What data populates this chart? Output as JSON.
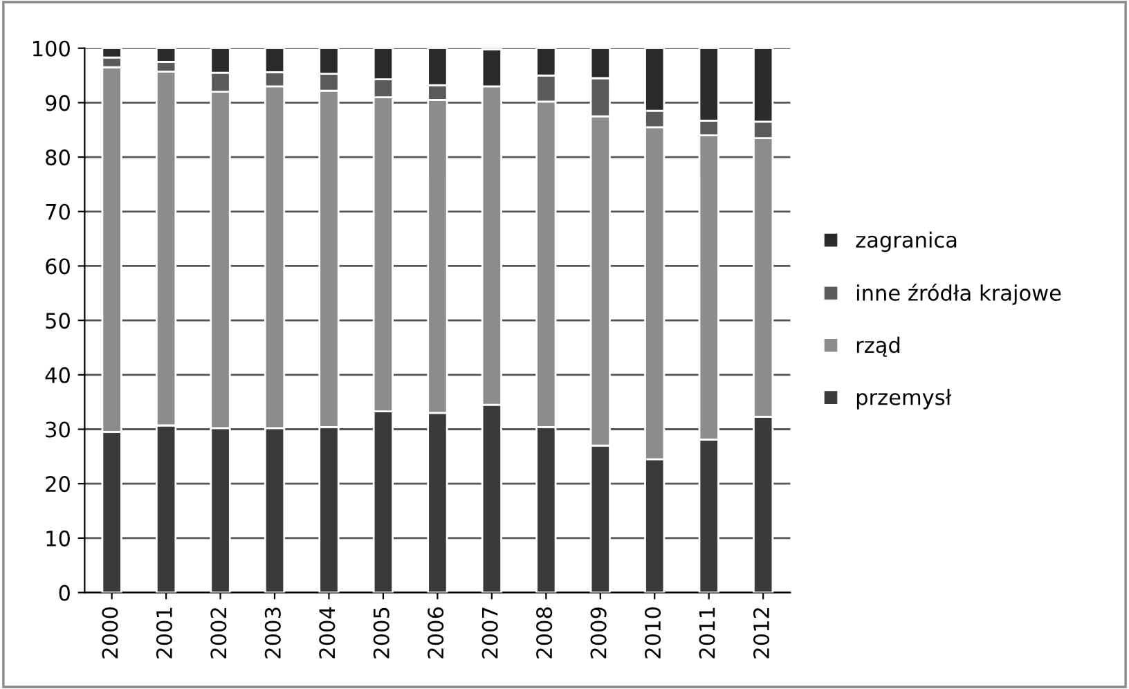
{
  "chart_data": {
    "type": "bar",
    "stacked": true,
    "categories": [
      "2000",
      "2001",
      "2002",
      "2003",
      "2004",
      "2005",
      "2006",
      "2007",
      "2008",
      "2009",
      "2010",
      "2011",
      "2012"
    ],
    "series": [
      {
        "name": "przemysł",
        "color": "#3a3a3a",
        "values": [
          29.5,
          30.7,
          30.2,
          30.2,
          30.4,
          33.3,
          33,
          34.5,
          30.4,
          27,
          24.5,
          28.1,
          32.3
        ]
      },
      {
        "name": "rząd",
        "color": "#8c8c8c",
        "values": [
          67,
          65,
          61.8,
          62.8,
          61.8,
          57.7,
          57.5,
          58.5,
          59.8,
          60.5,
          61,
          55.9,
          51.2
        ]
      },
      {
        "name": "inne źródła krajowe",
        "color": "#5a5a5a",
        "values": [
          1.8,
          1.8,
          3.5,
          2.6,
          3.1,
          3.3,
          2.7,
          null,
          4.8,
          7,
          3,
          2.7,
          3
        ]
      },
      {
        "name": "zagranica",
        "color": "#2a2a2a",
        "values": [
          1.7,
          2.5,
          4.5,
          4.4,
          4.7,
          5.7,
          6.8,
          6.8,
          5,
          5.5,
          11.5,
          13.3,
          13.5
        ]
      }
    ],
    "ylim": [
      0,
      100
    ],
    "yticks": [
      0,
      10,
      20,
      30,
      40,
      50,
      60,
      70,
      80,
      90,
      100
    ],
    "grid": "y",
    "legend": "right"
  }
}
